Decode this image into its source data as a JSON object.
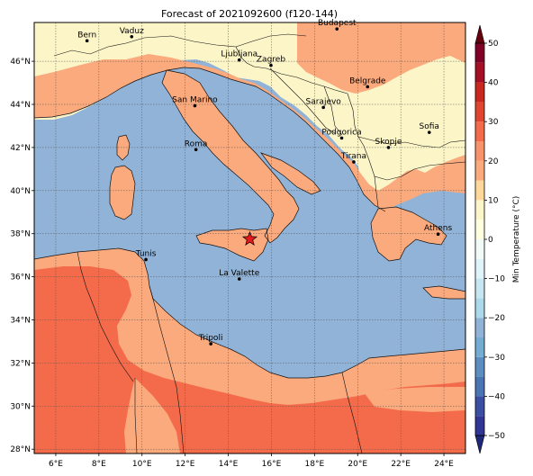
{
  "title": "Forecast of 2021092600 (f120-144)",
  "map": {
    "x_ticks": [
      "6°E",
      "8°E",
      "10°E",
      "12°E",
      "14°E",
      "16°E",
      "18°E",
      "20°E",
      "22°E",
      "24°E"
    ],
    "y_ticks": [
      "46°N",
      "44°N",
      "42°N",
      "40°N",
      "38°N",
      "36°N",
      "34°N",
      "32°N",
      "30°N",
      "28°N"
    ],
    "lon_range": [
      5,
      25
    ],
    "lat_range": [
      27.8,
      47.8
    ],
    "grid": true,
    "colors": {
      "sea": "#91b3d7",
      "cool": "#fcf5c8",
      "mild": "#fbaa7d",
      "warm": "#f36b4a",
      "pale": "#e6f4f8"
    }
  },
  "cities": [
    {
      "name": "Bern",
      "lon": 7.45,
      "lat": 46.95
    },
    {
      "name": "Vaduz",
      "lon": 9.52,
      "lat": 47.14
    },
    {
      "name": "Budapest",
      "lon": 19.04,
      "lat": 47.5
    },
    {
      "name": "Ljubljana",
      "lon": 14.51,
      "lat": 46.06
    },
    {
      "name": "Zagreb",
      "lon": 15.98,
      "lat": 45.81
    },
    {
      "name": "Belgrade",
      "lon": 20.46,
      "lat": 44.82
    },
    {
      "name": "San Marino",
      "lon": 12.45,
      "lat": 43.94
    },
    {
      "name": "Sarajevo",
      "lon": 18.41,
      "lat": 43.86
    },
    {
      "name": "Sofia",
      "lon": 23.32,
      "lat": 42.7
    },
    {
      "name": "Roma",
      "lon": 12.5,
      "lat": 41.9
    },
    {
      "name": "Podgorica",
      "lon": 19.26,
      "lat": 42.44
    },
    {
      "name": "Skopje",
      "lon": 21.43,
      "lat": 42.0
    },
    {
      "name": "Tirana",
      "lon": 19.82,
      "lat": 41.33
    },
    {
      "name": "Athens",
      "lon": 23.73,
      "lat": 37.98
    },
    {
      "name": "Tunis",
      "lon": 10.18,
      "lat": 36.8
    },
    {
      "name": "La Valette",
      "lon": 14.51,
      "lat": 35.9
    },
    {
      "name": "Tripoli",
      "lon": 13.19,
      "lat": 32.89
    }
  ],
  "marker": {
    "lon": 15.0,
    "lat": 37.75,
    "symbol": "star",
    "color": "#e41a1c"
  },
  "colorbar": {
    "label": "Min Temperature (°C)",
    "min": -50,
    "max": 50,
    "tick_values": [
      -50,
      -40,
      -30,
      -20,
      -10,
      0,
      10,
      20,
      30,
      40,
      50
    ],
    "tick_labels": [
      "−50",
      "−40",
      "−30",
      "−20",
      "−10",
      "0",
      "10",
      "20",
      "30",
      "40",
      "50"
    ],
    "levels": [
      {
        "from": -50,
        "to": -45,
        "color": "#313695"
      },
      {
        "from": -45,
        "to": -40,
        "color": "#3a4fa2"
      },
      {
        "from": -40,
        "to": -35,
        "color": "#4a74b4"
      },
      {
        "from": -35,
        "to": -30,
        "color": "#5c8ec1"
      },
      {
        "from": -30,
        "to": -25,
        "color": "#74add1"
      },
      {
        "from": -25,
        "to": -20,
        "color": "#91b3d7"
      },
      {
        "from": -20,
        "to": -15,
        "color": "#abd9e9"
      },
      {
        "from": -15,
        "to": -10,
        "color": "#c6e7f1"
      },
      {
        "from": -10,
        "to": -5,
        "color": "#e0f3f8"
      },
      {
        "from": -5,
        "to": 0,
        "color": "#f2faf8"
      },
      {
        "from": 0,
        "to": 5,
        "color": "#ffffe0"
      },
      {
        "from": 5,
        "to": 10,
        "color": "#fcf5c8"
      },
      {
        "from": 10,
        "to": 15,
        "color": "#fdd89a"
      },
      {
        "from": 15,
        "to": 20,
        "color": "#fbaa7d"
      },
      {
        "from": 20,
        "to": 25,
        "color": "#f8936b"
      },
      {
        "from": 25,
        "to": 30,
        "color": "#f36b4a"
      },
      {
        "from": 30,
        "to": 35,
        "color": "#e0452f"
      },
      {
        "from": 35,
        "to": 40,
        "color": "#c82820"
      },
      {
        "from": 40,
        "to": 45,
        "color": "#a50f26"
      },
      {
        "from": 45,
        "to": 50,
        "color": "#800026"
      }
    ],
    "extend": "both",
    "under_color": "#1f2878",
    "over_color": "#67000d"
  }
}
